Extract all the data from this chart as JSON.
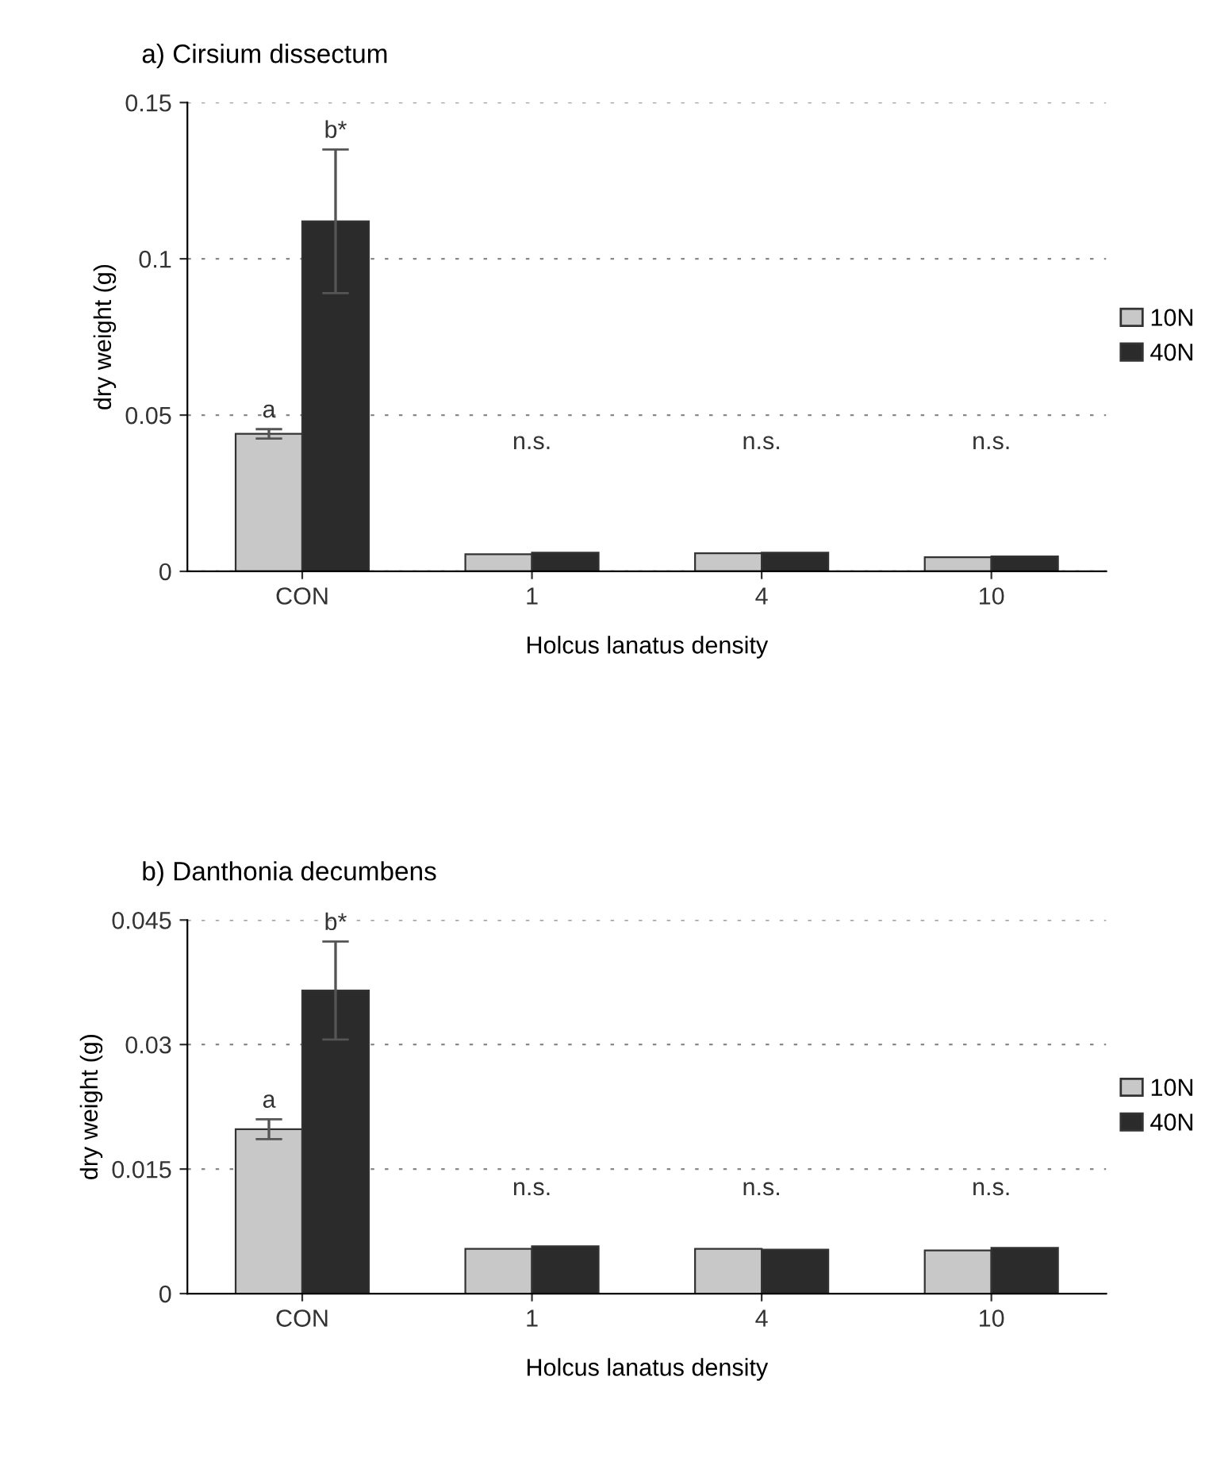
{
  "chart_data": [
    {
      "type": "bar",
      "title": "a) Cirsium dissectum",
      "xlabel": "Holcus lanatus density",
      "ylabel": "dry weight (g)",
      "categories": [
        "CON",
        "1",
        "4",
        "10"
      ],
      "series": [
        {
          "name": "10N",
          "color": "#c8c8c8",
          "values": [
            0.044,
            0.0055,
            0.0058,
            0.0045
          ],
          "errors": [
            0.0015,
            null,
            null,
            null
          ]
        },
        {
          "name": "40N",
          "color": "#2b2b2b",
          "values": [
            0.112,
            0.006,
            0.006,
            0.0048
          ],
          "errors": [
            0.023,
            null,
            null,
            null
          ]
        }
      ],
      "annotations": [
        "a",
        "b*",
        "n.s.",
        "n.s.",
        "n.s."
      ],
      "ylim": [
        0,
        0.15
      ],
      "yticks": [
        0,
        0.05,
        0.1,
        0.15
      ],
      "grid": "y",
      "legend": "right"
    },
    {
      "type": "bar",
      "title": "b) Danthonia decumbens",
      "xlabel": "Holcus lanatus density",
      "ylabel": "dry weight (g)",
      "categories": [
        "CON",
        "1",
        "4",
        "10"
      ],
      "series": [
        {
          "name": "10N",
          "color": "#c8c8c8",
          "values": [
            0.0198,
            0.0054,
            0.0054,
            0.0052
          ],
          "errors": [
            0.0012,
            null,
            null,
            null
          ]
        },
        {
          "name": "40N",
          "color": "#2b2b2b",
          "values": [
            0.0365,
            0.0057,
            0.0053,
            0.0055
          ],
          "errors": [
            0.0059,
            null,
            null,
            null
          ]
        }
      ],
      "annotations": [
        "a",
        "b*",
        "n.s.",
        "n.s.",
        "n.s."
      ],
      "ylim": [
        0,
        0.045
      ],
      "yticks": [
        0,
        0.015,
        0.03,
        0.045
      ],
      "grid": "y",
      "legend": "right"
    }
  ]
}
